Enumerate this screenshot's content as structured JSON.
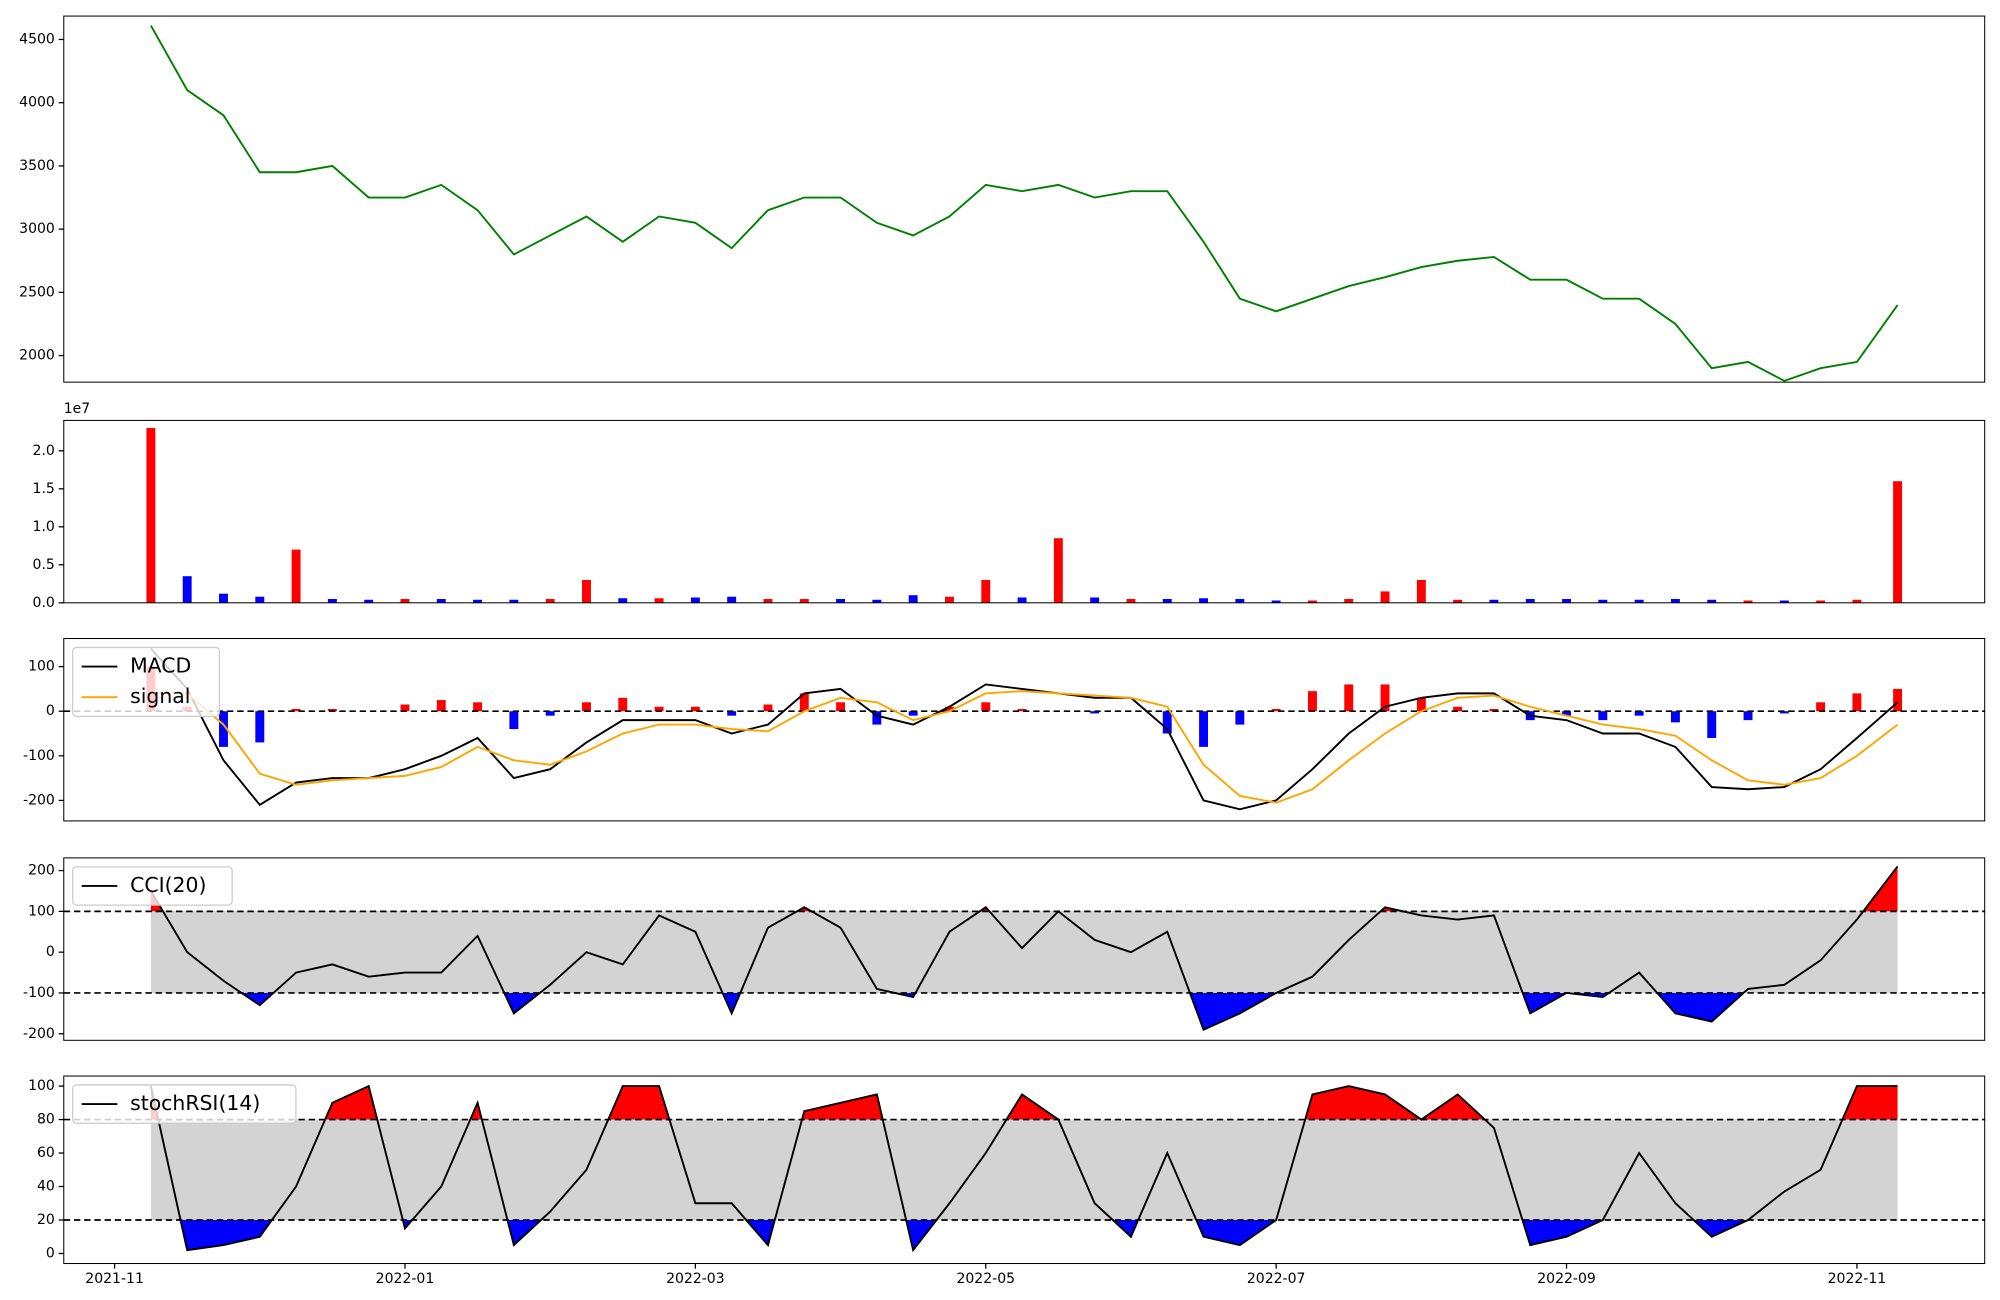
{
  "chart_data": [
    {
      "type": "line",
      "color": "#008000",
      "x": [
        0.25,
        0.5,
        0.75,
        1,
        1.25,
        1.5,
        1.75,
        2,
        2.25,
        2.5,
        2.75,
        3,
        3.25,
        3.5,
        3.75,
        4,
        4.25,
        4.5,
        4.75,
        5,
        5.25,
        5.5,
        5.75,
        6,
        6.25,
        6.5,
        6.75,
        7,
        7.25,
        7.5,
        7.75,
        8,
        8.25,
        8.5,
        8.75,
        9,
        9.25,
        9.5,
        9.75,
        10,
        10.25,
        10.5,
        10.75,
        11,
        11.25,
        11.5,
        11.75,
        12,
        12.28
      ],
      "values": [
        4610,
        4100,
        3900,
        3450,
        3450,
        3500,
        3250,
        3250,
        3350,
        3150,
        2800,
        2950,
        3100,
        2900,
        3100,
        3050,
        2850,
        3150,
        3250,
        3250,
        3050,
        2950,
        3100,
        3350,
        3300,
        3350,
        3250,
        3300,
        3300,
        2900,
        2450,
        2350,
        2450,
        2550,
        2620,
        2700,
        2750,
        2780,
        2600,
        2600,
        2450,
        2450,
        2250,
        1900,
        1950,
        1800,
        1900,
        1950,
        2400
      ],
      "xlim": [
        -0.35,
        12.88
      ],
      "ylim": [
        1790,
        4685
      ],
      "yticks": [
        2000,
        2500,
        3000,
        3500,
        4000,
        4500
      ]
    },
    {
      "type": "bar",
      "offset_label": "1e7",
      "x": [
        0.25,
        0.5,
        0.75,
        1,
        1.25,
        1.5,
        1.75,
        2,
        2.25,
        2.5,
        2.75,
        3,
        3.25,
        3.5,
        3.75,
        4,
        4.25,
        4.5,
        4.75,
        5,
        5.25,
        5.5,
        5.75,
        6,
        6.25,
        6.5,
        6.75,
        7,
        7.25,
        7.5,
        7.75,
        8,
        8.25,
        8.5,
        8.75,
        9,
        9.25,
        9.5,
        9.75,
        10,
        10.25,
        10.5,
        10.75,
        11,
        11.25,
        11.5,
        11.75,
        12,
        12.28
      ],
      "values": [
        2.3,
        0.35,
        0.12,
        0.08,
        0.7,
        0.05,
        0.04,
        0.05,
        0.05,
        0.04,
        0.04,
        0.05,
        0.3,
        0.06,
        0.06,
        0.07,
        0.08,
        0.05,
        0.05,
        0.05,
        0.04,
        0.1,
        0.08,
        0.3,
        0.07,
        0.85,
        0.07,
        0.05,
        0.05,
        0.06,
        0.05,
        0.03,
        0.03,
        0.05,
        0.15,
        0.3,
        0.04,
        0.04,
        0.05,
        0.05,
        0.04,
        0.04,
        0.05,
        0.04,
        0.03,
        0.03,
        0.03,
        0.04,
        1.6
      ],
      "colors": [
        "#ff0000",
        "#0000ff",
        "#0000ff",
        "#0000ff",
        "#ff0000",
        "#0000ff",
        "#0000ff",
        "#ff0000",
        "#0000ff",
        "#0000ff",
        "#0000ff",
        "#ff0000",
        "#ff0000",
        "#0000ff",
        "#ff0000",
        "#0000ff",
        "#0000ff",
        "#ff0000",
        "#ff0000",
        "#0000ff",
        "#0000ff",
        "#0000ff",
        "#ff0000",
        "#ff0000",
        "#0000ff",
        "#ff0000",
        "#0000ff",
        "#ff0000",
        "#0000ff",
        "#0000ff",
        "#0000ff",
        "#0000ff",
        "#ff0000",
        "#ff0000",
        "#ff0000",
        "#ff0000",
        "#ff0000",
        "#0000ff",
        "#0000ff",
        "#0000ff",
        "#0000ff",
        "#0000ff",
        "#0000ff",
        "#0000ff",
        "#ff0000",
        "#0000ff",
        "#ff0000",
        "#ff0000",
        "#ff0000"
      ],
      "xlim": [
        -0.35,
        12.88
      ],
      "ylim": [
        0,
        2.4
      ],
      "yticks": [
        {
          "value": 0,
          "label": "0.0"
        },
        {
          "value": 0.5,
          "label": "0.5"
        },
        {
          "value": 1,
          "label": "1.0"
        },
        {
          "value": 1.5,
          "label": "1.5"
        },
        {
          "value": 2,
          "label": "2.0"
        }
      ]
    },
    {
      "type": "macd",
      "legend": "upper left",
      "hlines": [
        0
      ],
      "x": [
        0.25,
        0.5,
        0.75,
        1,
        1.25,
        1.5,
        1.75,
        2,
        2.25,
        2.5,
        2.75,
        3,
        3.25,
        3.5,
        3.75,
        4,
        4.25,
        4.5,
        4.75,
        5,
        5.25,
        5.5,
        5.75,
        6,
        6.25,
        6.5,
        6.75,
        7,
        7.25,
        7.5,
        7.75,
        8,
        8.25,
        8.5,
        8.75,
        9,
        9.25,
        9.5,
        9.75,
        10,
        10.25,
        10.5,
        10.75,
        11,
        11.25,
        11.5,
        11.75,
        12,
        12.28
      ],
      "series": [
        {
          "name": "MACD",
          "color": "#000000",
          "values": [
            140,
            50,
            -110,
            -210,
            -160,
            -150,
            -150,
            -130,
            -100,
            -60,
            -150,
            -130,
            -70,
            -20,
            -20,
            -20,
            -50,
            -30,
            40,
            50,
            -10,
            -30,
            10,
            60,
            50,
            40,
            30,
            30,
            -40,
            -200,
            -220,
            -200,
            -130,
            -50,
            10,
            30,
            40,
            40,
            -10,
            -20,
            -50,
            -50,
            -80,
            -170,
            -175,
            -170,
            -130,
            -60,
            20
          ]
        },
        {
          "name": "signal",
          "color": "#ffa500",
          "values": [
            40,
            40,
            -30,
            -140,
            -165,
            -155,
            -150,
            -145,
            -125,
            -80,
            -110,
            -120,
            -90,
            -50,
            -30,
            -30,
            -40,
            -45,
            0,
            30,
            20,
            -20,
            0,
            40,
            45,
            40,
            35,
            30,
            10,
            -120,
            -190,
            -205,
            -175,
            -110,
            -50,
            0,
            30,
            35,
            10,
            -10,
            -30,
            -40,
            -55,
            -110,
            -155,
            -165,
            -150,
            -100,
            -30
          ]
        }
      ],
      "histogram": {
        "pos_color": "#ff0000",
        "neg_color": "#0000ff",
        "values": [
          100,
          10,
          -80,
          -70,
          5,
          5,
          0,
          15,
          25,
          20,
          -40,
          -10,
          20,
          30,
          10,
          10,
          -10,
          15,
          40,
          20,
          -30,
          -10,
          10,
          20,
          5,
          0,
          -5,
          0,
          -50,
          -80,
          -30,
          5,
          45,
          60,
          60,
          30,
          10,
          5,
          -20,
          -10,
          -20,
          -10,
          -25,
          -60,
          -20,
          -5,
          20,
          40,
          50
        ]
      },
      "xlim": [
        -0.35,
        12.88
      ],
      "ylim": [
        -246,
        163
      ],
      "yticks": [
        -200,
        -100,
        0,
        100
      ]
    },
    {
      "type": "band_oscillator",
      "legend": "upper left",
      "hlines": [
        100,
        -100
      ],
      "band_color": "#d3d3d3",
      "above_color": "#ff0000",
      "below_color": "#0000ff",
      "x": [
        0.25,
        0.5,
        0.75,
        1,
        1.25,
        1.5,
        1.75,
        2,
        2.25,
        2.5,
        2.75,
        3,
        3.25,
        3.5,
        3.75,
        4,
        4.25,
        4.5,
        4.75,
        5,
        5.25,
        5.5,
        5.75,
        6,
        6.25,
        6.5,
        6.75,
        7,
        7.25,
        7.5,
        7.75,
        8,
        8.25,
        8.5,
        8.75,
        9,
        9.25,
        9.5,
        9.75,
        10,
        10.25,
        10.5,
        10.75,
        11,
        11.25,
        11.5,
        11.75,
        12,
        12.28
      ],
      "series": [
        {
          "name": "CCI(20)",
          "color": "#000000",
          "values": [
            150,
            0,
            -70,
            -130,
            -50,
            -30,
            -60,
            -50,
            -50,
            40,
            -150,
            -80,
            0,
            -30,
            90,
            50,
            -150,
            60,
            110,
            60,
            -90,
            -110,
            50,
            110,
            10,
            100,
            30,
            0,
            50,
            -190,
            -150,
            -100,
            -60,
            30,
            110,
            90,
            80,
            90,
            -150,
            -100,
            -110,
            -50,
            -150,
            -170,
            -90,
            -80,
            -20,
            80,
            210
          ]
        }
      ],
      "xlim": [
        -0.35,
        12.88
      ],
      "ylim": [
        -216,
        231
      ],
      "yticks": [
        -200,
        -100,
        0,
        100,
        200
      ]
    },
    {
      "type": "band_oscillator",
      "legend": "upper left",
      "hlines": [
        80,
        20
      ],
      "band_color": "#d3d3d3",
      "above_color": "#ff0000",
      "below_color": "#0000ff",
      "x": [
        0.25,
        0.5,
        0.75,
        1,
        1.25,
        1.5,
        1.75,
        2,
        2.25,
        2.5,
        2.75,
        3,
        3.25,
        3.5,
        3.75,
        4,
        4.25,
        4.5,
        4.75,
        5,
        5.25,
        5.5,
        5.75,
        6,
        6.25,
        6.5,
        6.75,
        7,
        7.25,
        7.5,
        7.75,
        8,
        8.25,
        8.5,
        8.75,
        9,
        9.25,
        9.5,
        9.75,
        10,
        10.25,
        10.5,
        10.75,
        11,
        11.25,
        11.5,
        11.75,
        12,
        12.28
      ],
      "series": [
        {
          "name": "stochRSI(14)",
          "color": "#000000",
          "values": [
            100,
            2,
            5,
            10,
            40,
            90,
            100,
            15,
            40,
            90,
            5,
            25,
            50,
            100,
            100,
            30,
            30,
            5,
            85,
            90,
            95,
            2,
            30,
            60,
            95,
            80,
            30,
            10,
            60,
            10,
            5,
            20,
            95,
            100,
            95,
            80,
            95,
            75,
            5,
            10,
            20,
            60,
            30,
            10,
            20,
            37,
            50,
            100,
            100
          ]
        }
      ],
      "xlim": [
        -0.35,
        12.88
      ],
      "ylim": [
        -6,
        106
      ],
      "yticks": [
        0,
        20,
        40,
        60,
        80,
        100
      ],
      "xticks": [
        {
          "value": 0,
          "label": "2021-11"
        },
        {
          "value": 2,
          "label": "2022-01"
        },
        {
          "value": 4,
          "label": "2022-03"
        },
        {
          "value": 6,
          "label": "2022-05"
        },
        {
          "value": 8,
          "label": "2022-07"
        },
        {
          "value": 10,
          "label": "2022-09"
        },
        {
          "value": 12,
          "label": "2022-11"
        }
      ]
    }
  ]
}
